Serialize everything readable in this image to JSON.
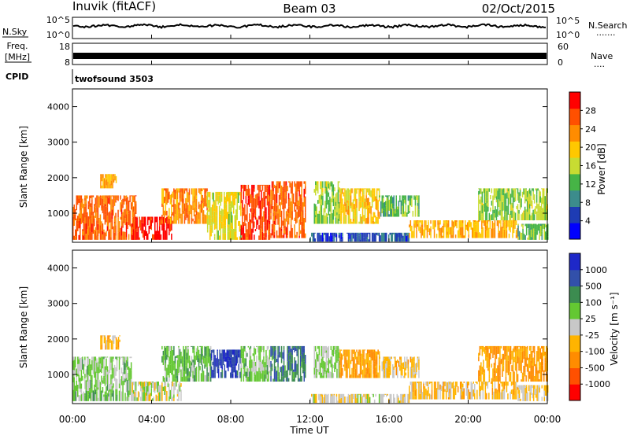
{
  "header": {
    "station": "Inuvik (fitACF)",
    "beam": "Beam 03",
    "date": "02/Oct/2015"
  },
  "nsky": {
    "left_label": "N.Sky",
    "right_label": "N.Search",
    "right_dots": "·······",
    "ticks": [
      "10^5",
      "10^0"
    ]
  },
  "freq": {
    "label_top": "Freq.",
    "label_bottom": "[MHz]",
    "right_label": "Nave",
    "right_dots": "····",
    "left_ticks": [
      "18",
      "8"
    ],
    "right_ticks": [
      "60",
      "0"
    ]
  },
  "cpid": {
    "label": "CPID",
    "program": "twofsound 3503"
  },
  "xaxis": {
    "label": "Time UT",
    "ticks": [
      "00:00",
      "04:00",
      "08:00",
      "12:00",
      "16:00",
      "20:00",
      "00:00"
    ]
  },
  "colors": {
    "power_scale": [
      "#0000ff",
      "#1e3cb4",
      "#3c8c8c",
      "#46b446",
      "#c8dc32",
      "#ffc800",
      "#ff8c00",
      "#ff5000",
      "#ff0000"
    ],
    "velocity_scale": [
      "#ff0000",
      "#ff5000",
      "#ff8c00",
      "#ffb400",
      "#c8c8c8",
      "#64c832",
      "#3c8c50",
      "#3250aa",
      "#1e28c8"
    ]
  },
  "chart_data": [
    {
      "type": "heatmap",
      "panel": "power",
      "ylabel": "Slant Range [km]",
      "xlabel": "Time UT",
      "xlim": [
        0,
        24
      ],
      "ylim": [
        180,
        4500
      ],
      "yticks": [
        1000,
        2000,
        3000,
        4000
      ],
      "colorbar": {
        "label": "Power [dB]",
        "ticks": [
          "4",
          "8",
          "12",
          "16",
          "20",
          "24",
          "28"
        ],
        "range": [
          0,
          30
        ]
      },
      "bands": [
        {
          "t0": 0.0,
          "t1": 3.2,
          "r0": 250,
          "r1": 1500,
          "v": 24
        },
        {
          "t0": 1.4,
          "t1": 2.2,
          "r0": 1700,
          "r1": 2100,
          "v": 20
        },
        {
          "t0": 3.0,
          "t1": 5.0,
          "r0": 250,
          "r1": 900,
          "v": 28
        },
        {
          "t0": 4.5,
          "t1": 6.8,
          "r0": 700,
          "r1": 1700,
          "v": 22
        },
        {
          "t0": 6.8,
          "t1": 8.5,
          "r0": 250,
          "r1": 1600,
          "v": 16
        },
        {
          "t0": 8.5,
          "t1": 10.0,
          "r0": 250,
          "r1": 1800,
          "v": 26
        },
        {
          "t0": 10.0,
          "t1": 11.8,
          "r0": 300,
          "r1": 1900,
          "v": 24
        },
        {
          "t0": 12.2,
          "t1": 13.5,
          "r0": 700,
          "r1": 1900,
          "v": 14
        },
        {
          "t0": 13.5,
          "t1": 15.5,
          "r0": 700,
          "r1": 1700,
          "v": 18
        },
        {
          "t0": 15.5,
          "t1": 17.5,
          "r0": 900,
          "r1": 1500,
          "v": 12
        },
        {
          "t0": 12.0,
          "t1": 17.0,
          "r0": 200,
          "r1": 450,
          "v": 6
        },
        {
          "t0": 17.0,
          "t1": 22.5,
          "r0": 300,
          "r1": 800,
          "v": 20
        },
        {
          "t0": 20.5,
          "t1": 24.0,
          "r0": 800,
          "r1": 1700,
          "v": 14
        },
        {
          "t0": 22.5,
          "t1": 24.0,
          "r0": 250,
          "r1": 700,
          "v": 12
        }
      ]
    },
    {
      "type": "heatmap",
      "panel": "velocity",
      "ylabel": "Slant Range [km]",
      "xlabel": "Time UT",
      "xlim": [
        0,
        24
      ],
      "ylim": [
        180,
        4500
      ],
      "yticks": [
        1000,
        2000,
        3000,
        4000
      ],
      "colorbar": {
        "label": "Velocity [m s⁻¹]",
        "ticks": [
          "-1000",
          "-500",
          "-100",
          "-25",
          "25",
          "100",
          "500",
          "1000"
        ],
        "range": [
          -1200,
          1200
        ]
      },
      "bands": [
        {
          "t0": 0.0,
          "t1": 3.0,
          "r0": 250,
          "r1": 1500,
          "v": 200
        },
        {
          "t0": 1.4,
          "t1": 2.4,
          "r0": 1700,
          "r1": 2100,
          "v": -300
        },
        {
          "t0": 3.0,
          "t1": 5.5,
          "r0": 250,
          "r1": 800,
          "v": 0
        },
        {
          "t0": 4.5,
          "t1": 7.0,
          "r0": 800,
          "r1": 1800,
          "v": 300
        },
        {
          "t0": 7.0,
          "t1": 8.5,
          "r0": 900,
          "r1": 1700,
          "v": 900
        },
        {
          "t0": 8.5,
          "t1": 10.0,
          "r0": 800,
          "r1": 1800,
          "v": 200
        },
        {
          "t0": 10.0,
          "t1": 11.8,
          "r0": 800,
          "r1": 1800,
          "v": 600
        },
        {
          "t0": 12.2,
          "t1": 13.5,
          "r0": 900,
          "r1": 1800,
          "v": 150
        },
        {
          "t0": 13.5,
          "t1": 15.5,
          "r0": 900,
          "r1": 1700,
          "v": -400
        },
        {
          "t0": 15.5,
          "t1": 17.5,
          "r0": 900,
          "r1": 1500,
          "v": -200
        },
        {
          "t0": 12.0,
          "t1": 17.0,
          "r0": 200,
          "r1": 450,
          "v": -50
        },
        {
          "t0": 17.0,
          "t1": 22.5,
          "r0": 300,
          "r1": 800,
          "v": -250
        },
        {
          "t0": 20.5,
          "t1": 24.0,
          "r0": 800,
          "r1": 1800,
          "v": -400
        },
        {
          "t0": 22.5,
          "t1": 24.0,
          "r0": 250,
          "r1": 700,
          "v": -150
        }
      ]
    }
  ]
}
